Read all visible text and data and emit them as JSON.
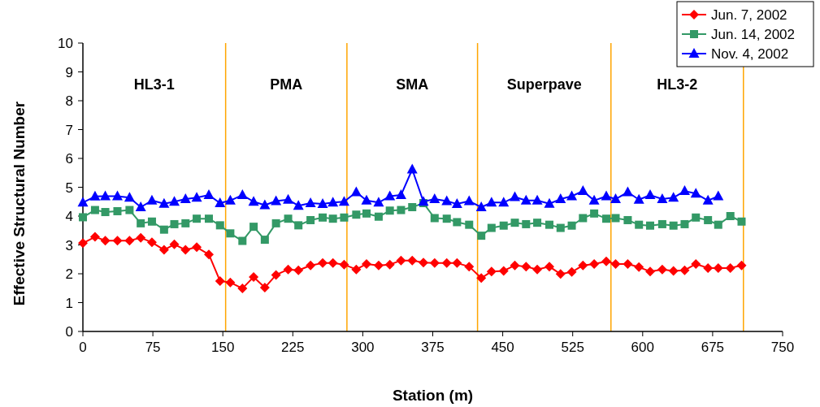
{
  "chart_data": {
    "type": "line",
    "xlabel": "Station (m)",
    "ylabel": "Effective Structural Number",
    "x": [
      0,
      13,
      24,
      37,
      50,
      62,
      74,
      87,
      98,
      110,
      122,
      135,
      147,
      158,
      171,
      183,
      195,
      207,
      220,
      231,
      244,
      257,
      268,
      280,
      293,
      304,
      317,
      329,
      341,
      353,
      365,
      377,
      390,
      401,
      414,
      427,
      438,
      451,
      463,
      475,
      487,
      500,
      512,
      524,
      536,
      548,
      561,
      571,
      584,
      596,
      608,
      621,
      633,
      645,
      657,
      670,
      681,
      694,
      706
    ],
    "series": [
      {
        "name": "Jun. 7, 2002",
        "color": "#ff0000",
        "marker": "diamond",
        "values": [
          3.06,
          3.28,
          3.15,
          3.15,
          3.15,
          3.25,
          3.09,
          2.83,
          3.02,
          2.83,
          2.92,
          2.67,
          1.75,
          1.7,
          1.49,
          1.89,
          1.52,
          1.96,
          2.15,
          2.12,
          2.29,
          2.37,
          2.37,
          2.32,
          2.15,
          2.34,
          2.29,
          2.32,
          2.46,
          2.46,
          2.39,
          2.37,
          2.37,
          2.37,
          2.25,
          1.85,
          2.08,
          2.1,
          2.29,
          2.25,
          2.15,
          2.25,
          1.99,
          2.06,
          2.29,
          2.34,
          2.43,
          2.34,
          2.34,
          2.23,
          2.08,
          2.15,
          2.1,
          2.12,
          2.34,
          2.2,
          2.2,
          2.2,
          2.29
        ]
      },
      {
        "name": "Jun. 14, 2002",
        "color": "#339966",
        "marker": "square",
        "values": [
          3.96,
          4.21,
          4.14,
          4.17,
          4.21,
          3.75,
          3.81,
          3.53,
          3.72,
          3.75,
          3.91,
          3.91,
          3.68,
          3.4,
          3.14,
          3.63,
          3.18,
          3.75,
          3.91,
          3.68,
          3.86,
          3.95,
          3.91,
          3.95,
          4.05,
          4.09,
          3.98,
          4.19,
          4.21,
          4.31,
          4.45,
          3.93,
          3.91,
          3.79,
          3.7,
          3.32,
          3.59,
          3.67,
          3.77,
          3.72,
          3.77,
          3.7,
          3.59,
          3.67,
          3.93,
          4.09,
          3.91,
          3.93,
          3.86,
          3.7,
          3.67,
          3.72,
          3.67,
          3.72,
          3.95,
          3.86,
          3.7,
          4.0,
          3.81
        ]
      },
      {
        "name": "Nov. 4, 2002",
        "color": "#0000ff",
        "marker": "triangle",
        "values": [
          4.47,
          4.68,
          4.69,
          4.69,
          4.64,
          4.31,
          4.54,
          4.43,
          4.5,
          4.59,
          4.64,
          4.73,
          4.45,
          4.54,
          4.73,
          4.5,
          4.38,
          4.52,
          4.57,
          4.36,
          4.45,
          4.42,
          4.47,
          4.5,
          4.83,
          4.54,
          4.47,
          4.69,
          4.73,
          5.62,
          4.5,
          4.59,
          4.52,
          4.42,
          4.52,
          4.31,
          4.47,
          4.47,
          4.66,
          4.54,
          4.54,
          4.43,
          4.59,
          4.69,
          4.87,
          4.54,
          4.69,
          4.59,
          4.83,
          4.57,
          4.73,
          4.59,
          4.64,
          4.87,
          4.78,
          4.54,
          4.69,
          null,
          null
        ]
      }
    ],
    "xlim": [
      0,
      750
    ],
    "xticks": [
      0,
      75,
      150,
      225,
      300,
      375,
      450,
      525,
      600,
      675,
      750
    ],
    "ylim": [
      0,
      10
    ],
    "yticks": [
      0,
      1,
      2,
      3,
      4,
      5,
      6,
      7,
      8,
      9,
      10
    ],
    "ref_lines": [
      {
        "axis": "x",
        "value": 153,
        "color": "#ffa500"
      },
      {
        "axis": "x",
        "value": 283,
        "color": "#ffa500"
      },
      {
        "axis": "x",
        "value": 423,
        "color": "#ffa500"
      },
      {
        "axis": "x",
        "value": 566,
        "color": "#ffa500"
      },
      {
        "axis": "x",
        "value": 708,
        "color": "#ffa500"
      }
    ],
    "annotations": [
      "HL3-1",
      "PMA",
      "SMA",
      "Superpave",
      "HL3-2"
    ],
    "legend": "top right",
    "grid": false,
    "line_style": "solid"
  }
}
